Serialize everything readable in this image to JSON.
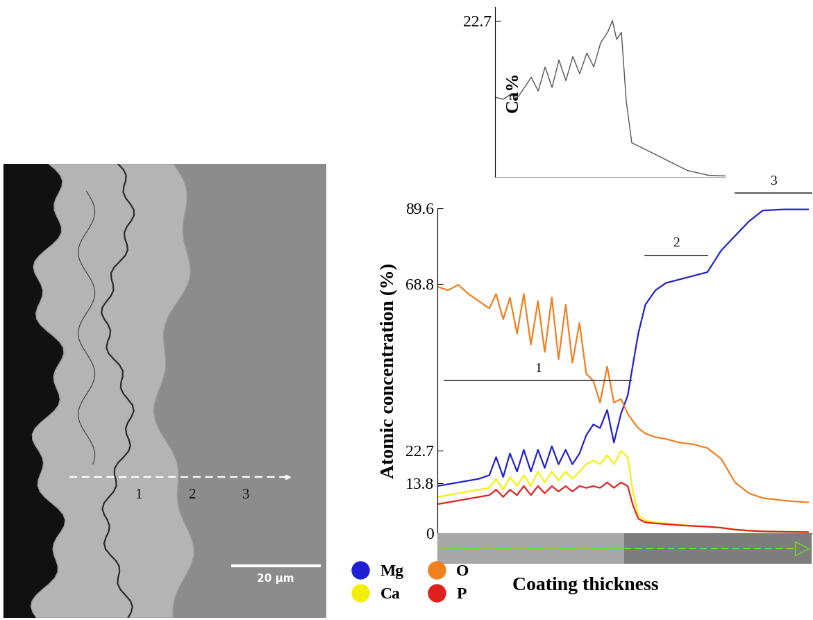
{
  "chart_data": [
    {
      "type": "line",
      "y_label": "Ca%",
      "x": [
        0,
        3.6,
        6.6,
        9.6,
        12.7,
        15.7,
        18.7,
        21.7,
        24.7,
        27.7,
        30.7,
        33.7,
        36.7,
        39.8,
        42.8,
        45.8,
        48.8,
        50.9,
        52.7,
        54.8,
        56.9,
        59.3,
        65.4,
        74.4,
        83.4,
        92.4,
        100
      ],
      "values": [
        11.6,
        11.3,
        12,
        11.5,
        13,
        14.5,
        12.5,
        16,
        13,
        17,
        14,
        17.5,
        15,
        18,
        16,
        19.5,
        21,
        22.7,
        20,
        21,
        11,
        5,
        4,
        2.5,
        1,
        0.3,
        0.2
      ],
      "color": "#555555",
      "xlim": [
        0,
        100
      ],
      "ylim": [
        0,
        24.7
      ],
      "yticks": [
        22.7
      ],
      "tick_labels": "y"
    },
    {
      "type": "line",
      "x_label": "Coating thickness",
      "y_label": "Atomic concentration (%)",
      "x": [
        0,
        2.8,
        5.6,
        8.3,
        11.1,
        13.9,
        15.7,
        17.6,
        19.4,
        21.3,
        23.1,
        25.0,
        26.9,
        28.7,
        30.6,
        32.4,
        34.3,
        36.1,
        38.0,
        39.8,
        41.7,
        43.5,
        45.4,
        47.2,
        49.1,
        50.9,
        52.2,
        53.7,
        55.6,
        58.3,
        61.1,
        64.8,
        68.5,
        72.2,
        75.9,
        79.6,
        83.3,
        87.0,
        92.6,
        99.1
      ],
      "series": [
        {
          "name": "Mg",
          "color": "#1f1fd6",
          "values": [
            13,
            13.5,
            14,
            14.5,
            15,
            16,
            21,
            15.5,
            22,
            17,
            23,
            17,
            23,
            18,
            24,
            19,
            23,
            19,
            22,
            27,
            30,
            29,
            34,
            25,
            33,
            38,
            46,
            55,
            63,
            67,
            69,
            70,
            71,
            72,
            78,
            82,
            86,
            89,
            89.3,
            89.3
          ]
        },
        {
          "name": "O",
          "color": "#f07f1e",
          "values": [
            68,
            67,
            68.5,
            66,
            64,
            62,
            66,
            59,
            65,
            55,
            66,
            52,
            64,
            50,
            65,
            48,
            63,
            47,
            58,
            44,
            42,
            36,
            46,
            36,
            37,
            33,
            31,
            29,
            27.5,
            26.5,
            26,
            25,
            24.5,
            23.5,
            20.5,
            14,
            11,
            9.7,
            9,
            8.5
          ]
        },
        {
          "name": "Ca",
          "color": "#f5f00a",
          "values": [
            10,
            10.5,
            11,
            11.5,
            12,
            12.5,
            15,
            12,
            15.5,
            13,
            16,
            13,
            17,
            14,
            17,
            14.5,
            17,
            15,
            17,
            19,
            20,
            19,
            21.5,
            19,
            22.7,
            21,
            12,
            5,
            3.5,
            3,
            2.7,
            2.3,
            2,
            1.8,
            1.5,
            1,
            0.7,
            0.5,
            0.4,
            0.3
          ]
        },
        {
          "name": "P",
          "color": "#e0201e",
          "values": [
            8,
            8.5,
            9,
            9.5,
            10,
            10.5,
            12,
            10,
            12,
            10.5,
            13,
            10.5,
            13,
            11,
            13,
            11.5,
            13,
            11.5,
            13,
            12.5,
            13,
            12.5,
            14,
            12.5,
            14,
            13,
            8,
            4,
            3,
            2.7,
            2.5,
            2.2,
            2,
            1.8,
            1.5,
            1,
            0.7,
            0.5,
            0.4,
            0.3
          ]
        }
      ],
      "annotations": [
        {
          "text": "1",
          "x": [
            1.9,
            51.9
          ]
        },
        {
          "text": "2",
          "x": [
            55.6,
            72.2
          ]
        },
        {
          "text": "3",
          "x": [
            79.6,
            100
          ]
        }
      ],
      "xlim": [
        0,
        100
      ],
      "ylim": [
        0,
        89.6
      ],
      "yticks": [
        0,
        13.8,
        22.7,
        68.8,
        89.6
      ],
      "tick_labels": "y",
      "legend": "lower left"
    }
  ],
  "micrograph": {
    "point_labels": [
      "1",
      "2",
      "3"
    ],
    "scale_bar": "20 µm"
  }
}
